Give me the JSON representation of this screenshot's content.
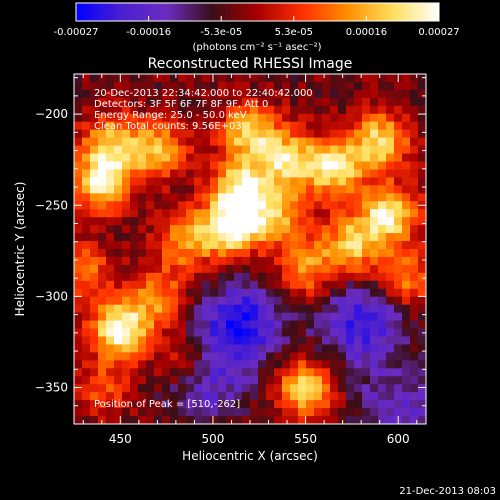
{
  "colorbar": {
    "ticks": [
      "-0.00027",
      "-0.00016",
      "-5.3e-05",
      "5.3e-05",
      "0.00016",
      "0.00027"
    ],
    "units_label": "(photons cm⁻² s⁻¹ asec⁻²)",
    "colors": [
      "#0000ff",
      "#4b1fd0",
      "#6b2cc0",
      "#3a0e18",
      "#a80000",
      "#ff3000",
      "#ff9000",
      "#ffe060",
      "#ffffff"
    ]
  },
  "image": {
    "title": "Reconstructed RHESSI Image",
    "info_lines": [
      "20-Dec-2013 22:34:42.000 to 22:40:42.000",
      "Detectors: 3F 5F 6F 7F 8F 9F, Att 0",
      "Energy Range: 25.0 - 50.0 keV",
      "Clean     Total counts: 9.56E+03"
    ],
    "peak_label": "Position of Peak = [510,-262]",
    "xlabel": "Heliocentric X (arcsec)",
    "ylabel": "Heliocentric Y (arcsec)",
    "xlim": [
      425,
      615
    ],
    "ylim": [
      -370,
      -178
    ],
    "x_ticks": [
      {
        "v": 450,
        "label": "450"
      },
      {
        "v": 500,
        "label": "500"
      },
      {
        "v": 550,
        "label": "550"
      },
      {
        "v": 600,
        "label": "600"
      }
    ],
    "y_ticks": [
      {
        "v": -200,
        "label": "−200"
      },
      {
        "v": -250,
        "label": "−250"
      },
      {
        "v": -300,
        "label": "−300"
      },
      {
        "v": -350,
        "label": "−350"
      }
    ],
    "blobs": [
      {
        "x": 510,
        "y": -262,
        "amp": 1.0
      },
      {
        "x": 440,
        "y": -237,
        "amp": 0.85
      },
      {
        "x": 450,
        "y": -318,
        "amp": 0.95
      },
      {
        "x": 445,
        "y": -215,
        "amp": 0.6
      },
      {
        "x": 470,
        "y": -220,
        "amp": 0.65
      },
      {
        "x": 485,
        "y": -270,
        "amp": 0.55
      },
      {
        "x": 520,
        "y": -210,
        "amp": 0.7
      },
      {
        "x": 540,
        "y": -225,
        "amp": 0.7
      },
      {
        "x": 565,
        "y": -230,
        "amp": 0.8
      },
      {
        "x": 590,
        "y": -215,
        "amp": 0.75
      },
      {
        "x": 595,
        "y": -255,
        "amp": 0.85
      },
      {
        "x": 575,
        "y": -272,
        "amp": 0.7
      },
      {
        "x": 550,
        "y": -285,
        "amp": 0.55
      },
      {
        "x": 470,
        "y": -300,
        "amp": 0.5
      },
      {
        "x": 485,
        "y": -335,
        "amp": 0.45
      },
      {
        "x": 550,
        "y": -350,
        "amp": 0.75
      },
      {
        "x": 440,
        "y": -350,
        "amp": 0.35
      },
      {
        "x": 605,
        "y": -290,
        "amp": 0.5
      },
      {
        "x": 430,
        "y": -285,
        "amp": 0.45
      },
      {
        "x": 515,
        "y": -240,
        "amp": 0.8
      },
      {
        "x": 535,
        "y": -255,
        "amp": 0.6
      }
    ],
    "dips": [
      {
        "x": 515,
        "y": -315,
        "amp": 0.65
      },
      {
        "x": 580,
        "y": -315,
        "amp": 0.55
      },
      {
        "x": 495,
        "y": -345,
        "amp": 0.45
      },
      {
        "x": 600,
        "y": -360,
        "amp": 0.35
      }
    ]
  },
  "footer": {
    "timestamp": "21-Dec-2013 08:03"
  }
}
